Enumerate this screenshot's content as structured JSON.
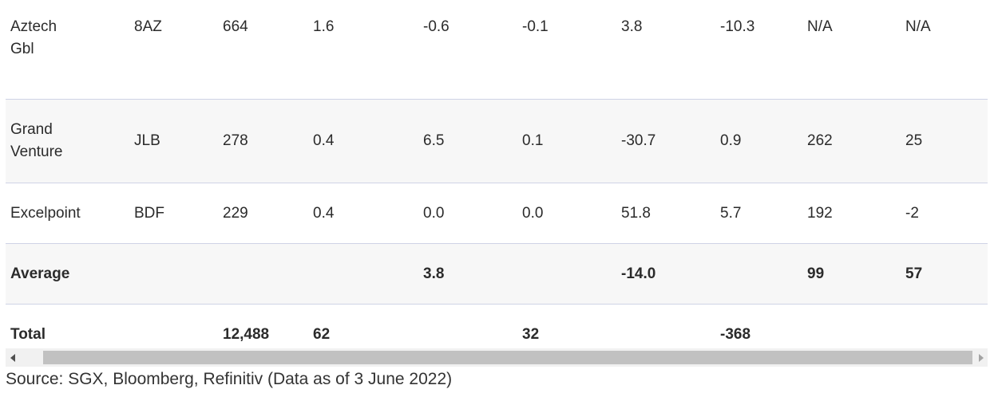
{
  "table": {
    "rows": [
      {
        "name": "Aztech Gbl",
        "code": "8AZ",
        "c3": "664",
        "c4": "1.6",
        "c5": "-0.6",
        "c6": "-0.1",
        "c7": "3.8",
        "c8": "-10.3",
        "c9": "N/A",
        "c10": "N/A"
      },
      {
        "name": "Grand Venture",
        "code": "JLB",
        "c3": "278",
        "c4": "0.4",
        "c5": "6.5",
        "c6": "0.1",
        "c7": "-30.7",
        "c8": "0.9",
        "c9": "262",
        "c10": "25"
      },
      {
        "name": "Excelpoint",
        "code": "BDF",
        "c3": "229",
        "c4": "0.4",
        "c5": "0.0",
        "c6": "0.0",
        "c7": "51.8",
        "c8": "5.7",
        "c9": "192",
        "c10": "-2"
      }
    ],
    "average": {
      "label": "Average",
      "c3": "",
      "c4": "",
      "c5": "3.8",
      "c6": "",
      "c7": "-14.0",
      "c8": "",
      "c9": "99",
      "c10": "57"
    },
    "total": {
      "label": "Total",
      "c3": "12,488",
      "c4": "62",
      "c5": "",
      "c6": "32",
      "c7": "",
      "c8": "-368",
      "c9": "",
      "c10": ""
    }
  },
  "scrollbar": {
    "left_icon": "arrow-left-icon",
    "right_icon": "arrow-right-icon"
  },
  "source_text": "Source: SGX, Bloomberg, Refinitiv (Data as of 3 June 2022)"
}
